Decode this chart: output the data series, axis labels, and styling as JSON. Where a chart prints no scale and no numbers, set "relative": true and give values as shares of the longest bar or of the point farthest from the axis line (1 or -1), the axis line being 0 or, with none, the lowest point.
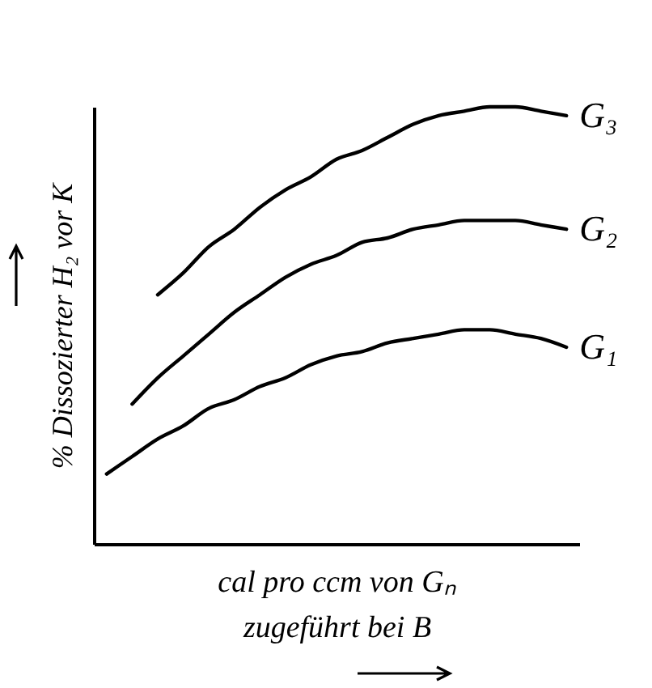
{
  "chart_data": {
    "type": "line",
    "relative": true,
    "xlabel": "cal pro ccm von Gₙ\nzugeführt bei B",
    "ylabel": "% Dissozierter H₂ vor K",
    "categories": [
      null,
      null,
      null,
      null,
      null,
      null,
      null,
      null,
      null,
      null,
      null,
      null,
      null,
      null,
      null,
      null,
      null,
      null,
      null
    ],
    "series": [
      {
        "name": "G₁",
        "color": "#000000",
        "values": [
          0.16,
          0.2,
          0.24,
          0.27,
          0.31,
          0.33,
          0.36,
          0.38,
          0.41,
          0.43,
          0.44,
          0.46,
          0.47,
          0.48,
          0.49,
          0.49,
          0.48,
          0.47,
          0.45
        ]
      },
      {
        "name": "G₂",
        "color": "#000000",
        "values": [
          null,
          0.32,
          0.38,
          0.43,
          0.48,
          0.53,
          0.57,
          0.61,
          0.64,
          0.66,
          0.69,
          0.7,
          0.72,
          0.73,
          0.74,
          0.74,
          0.74,
          0.73,
          0.72
        ]
      },
      {
        "name": "G₃",
        "color": "#000000",
        "values": [
          null,
          null,
          0.57,
          0.62,
          0.68,
          0.72,
          0.77,
          0.81,
          0.84,
          0.88,
          0.9,
          0.93,
          0.96,
          0.98,
          0.99,
          1.0,
          1.0,
          0.99,
          0.98
        ]
      }
    ]
  }
}
